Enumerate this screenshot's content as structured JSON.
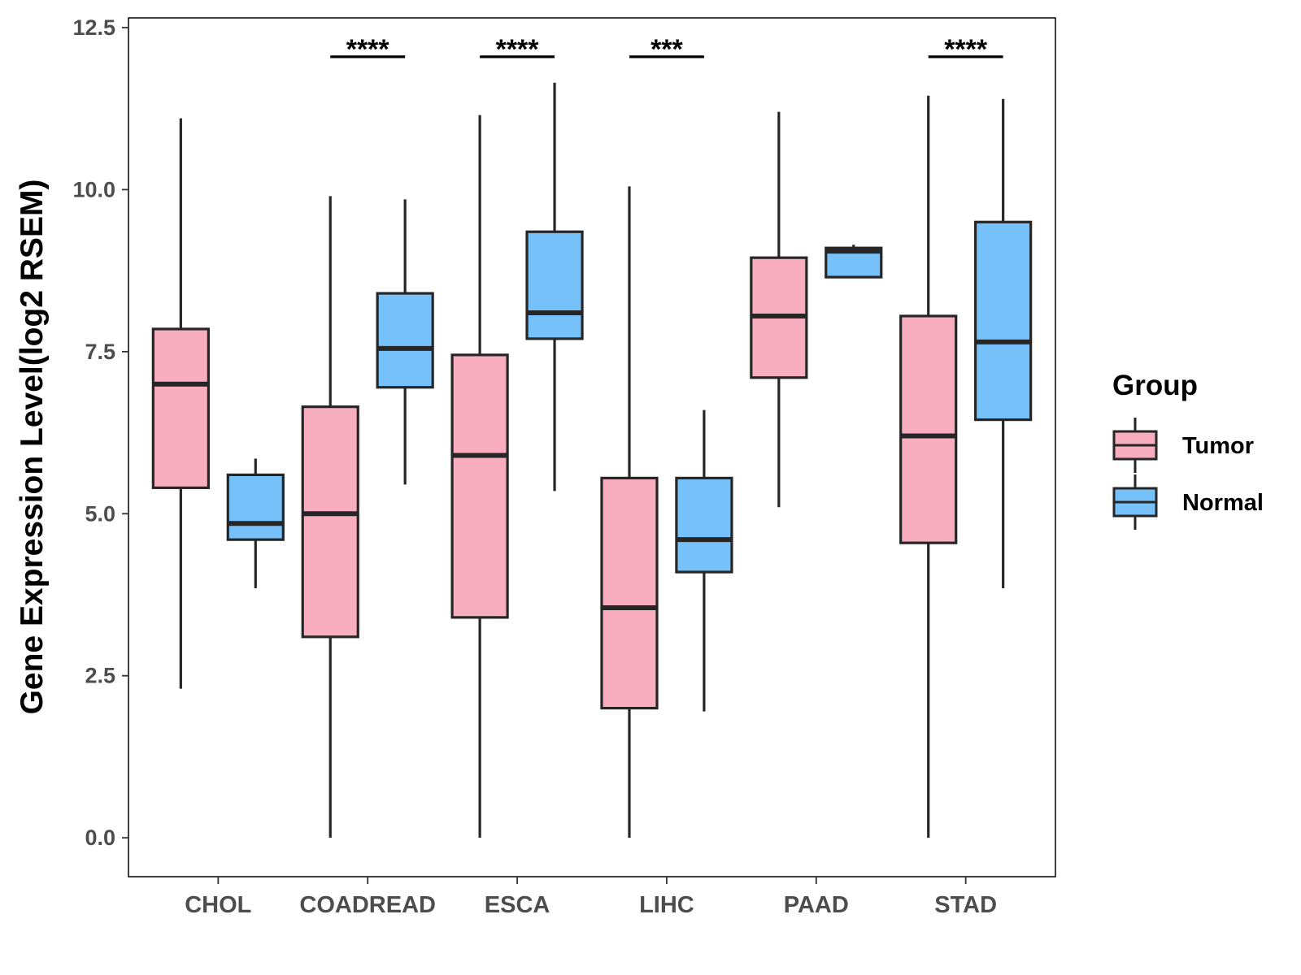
{
  "chart_data": {
    "type": "boxplot",
    "title": "",
    "xlabel": "",
    "ylabel": "Gene Expression Level(log2 RSEM)",
    "ylim": [
      -0.6,
      12.65
    ],
    "yticks": [
      0.0,
      2.5,
      5.0,
      7.5,
      10.0,
      12.5
    ],
    "ytick_labels": [
      "0.0",
      "2.5",
      "5.0",
      "7.5",
      "10.0",
      "12.5"
    ],
    "categories": [
      "CHOL",
      "COADREAD",
      "ESCA",
      "LIHC",
      "PAAD",
      "STAD"
    ],
    "legend": {
      "title": "Group",
      "position": "right",
      "entries": [
        {
          "name": "Tumor",
          "color": "#f9aec0"
        },
        {
          "name": "Normal",
          "color": "#76c1f9"
        }
      ]
    },
    "series": [
      {
        "name": "Tumor",
        "color": "#f9aec0",
        "boxes": [
          {
            "category": "CHOL",
            "min": 2.3,
            "q1": 5.4,
            "median": 7.0,
            "q3": 7.85,
            "max": 11.1
          },
          {
            "category": "COADREAD",
            "min": 0.0,
            "q1": 3.1,
            "median": 5.0,
            "q3": 6.65,
            "max": 9.9
          },
          {
            "category": "ESCA",
            "min": 0.0,
            "q1": 3.4,
            "median": 5.9,
            "q3": 7.45,
            "max": 11.15
          },
          {
            "category": "LIHC",
            "min": 0.0,
            "q1": 2.0,
            "median": 3.55,
            "q3": 5.55,
            "max": 10.05
          },
          {
            "category": "PAAD",
            "min": 5.1,
            "q1": 7.1,
            "median": 8.05,
            "q3": 8.95,
            "max": 11.2
          },
          {
            "category": "STAD",
            "min": 0.0,
            "q1": 4.55,
            "median": 6.2,
            "q3": 8.05,
            "max": 11.45
          }
        ]
      },
      {
        "name": "Normal",
        "color": "#76c1f9",
        "boxes": [
          {
            "category": "CHOL",
            "min": 3.85,
            "q1": 4.6,
            "median": 4.85,
            "q3": 5.6,
            "max": 5.85
          },
          {
            "category": "COADREAD",
            "min": 5.45,
            "q1": 6.95,
            "median": 7.55,
            "q3": 8.4,
            "max": 9.85
          },
          {
            "category": "ESCA",
            "min": 5.35,
            "q1": 7.7,
            "median": 8.1,
            "q3": 9.35,
            "max": 11.65
          },
          {
            "category": "LIHC",
            "min": 1.95,
            "q1": 4.1,
            "median": 4.6,
            "q3": 5.55,
            "max": 6.6
          },
          {
            "category": "PAAD",
            "min": 8.65,
            "q1": 8.65,
            "median": 9.05,
            "q3": 9.1,
            "max": 9.15
          },
          {
            "category": "STAD",
            "min": 3.85,
            "q1": 6.45,
            "median": 7.65,
            "q3": 9.5,
            "max": 11.4
          }
        ]
      }
    ],
    "significance": [
      {
        "category": "CHOL",
        "label": ""
      },
      {
        "category": "COADREAD",
        "label": "****"
      },
      {
        "category": "ESCA",
        "label": "****"
      },
      {
        "category": "LIHC",
        "label": "***"
      },
      {
        "category": "PAAD",
        "label": ""
      },
      {
        "category": "STAD",
        "label": "****"
      }
    ],
    "significance_y": 12.05
  }
}
